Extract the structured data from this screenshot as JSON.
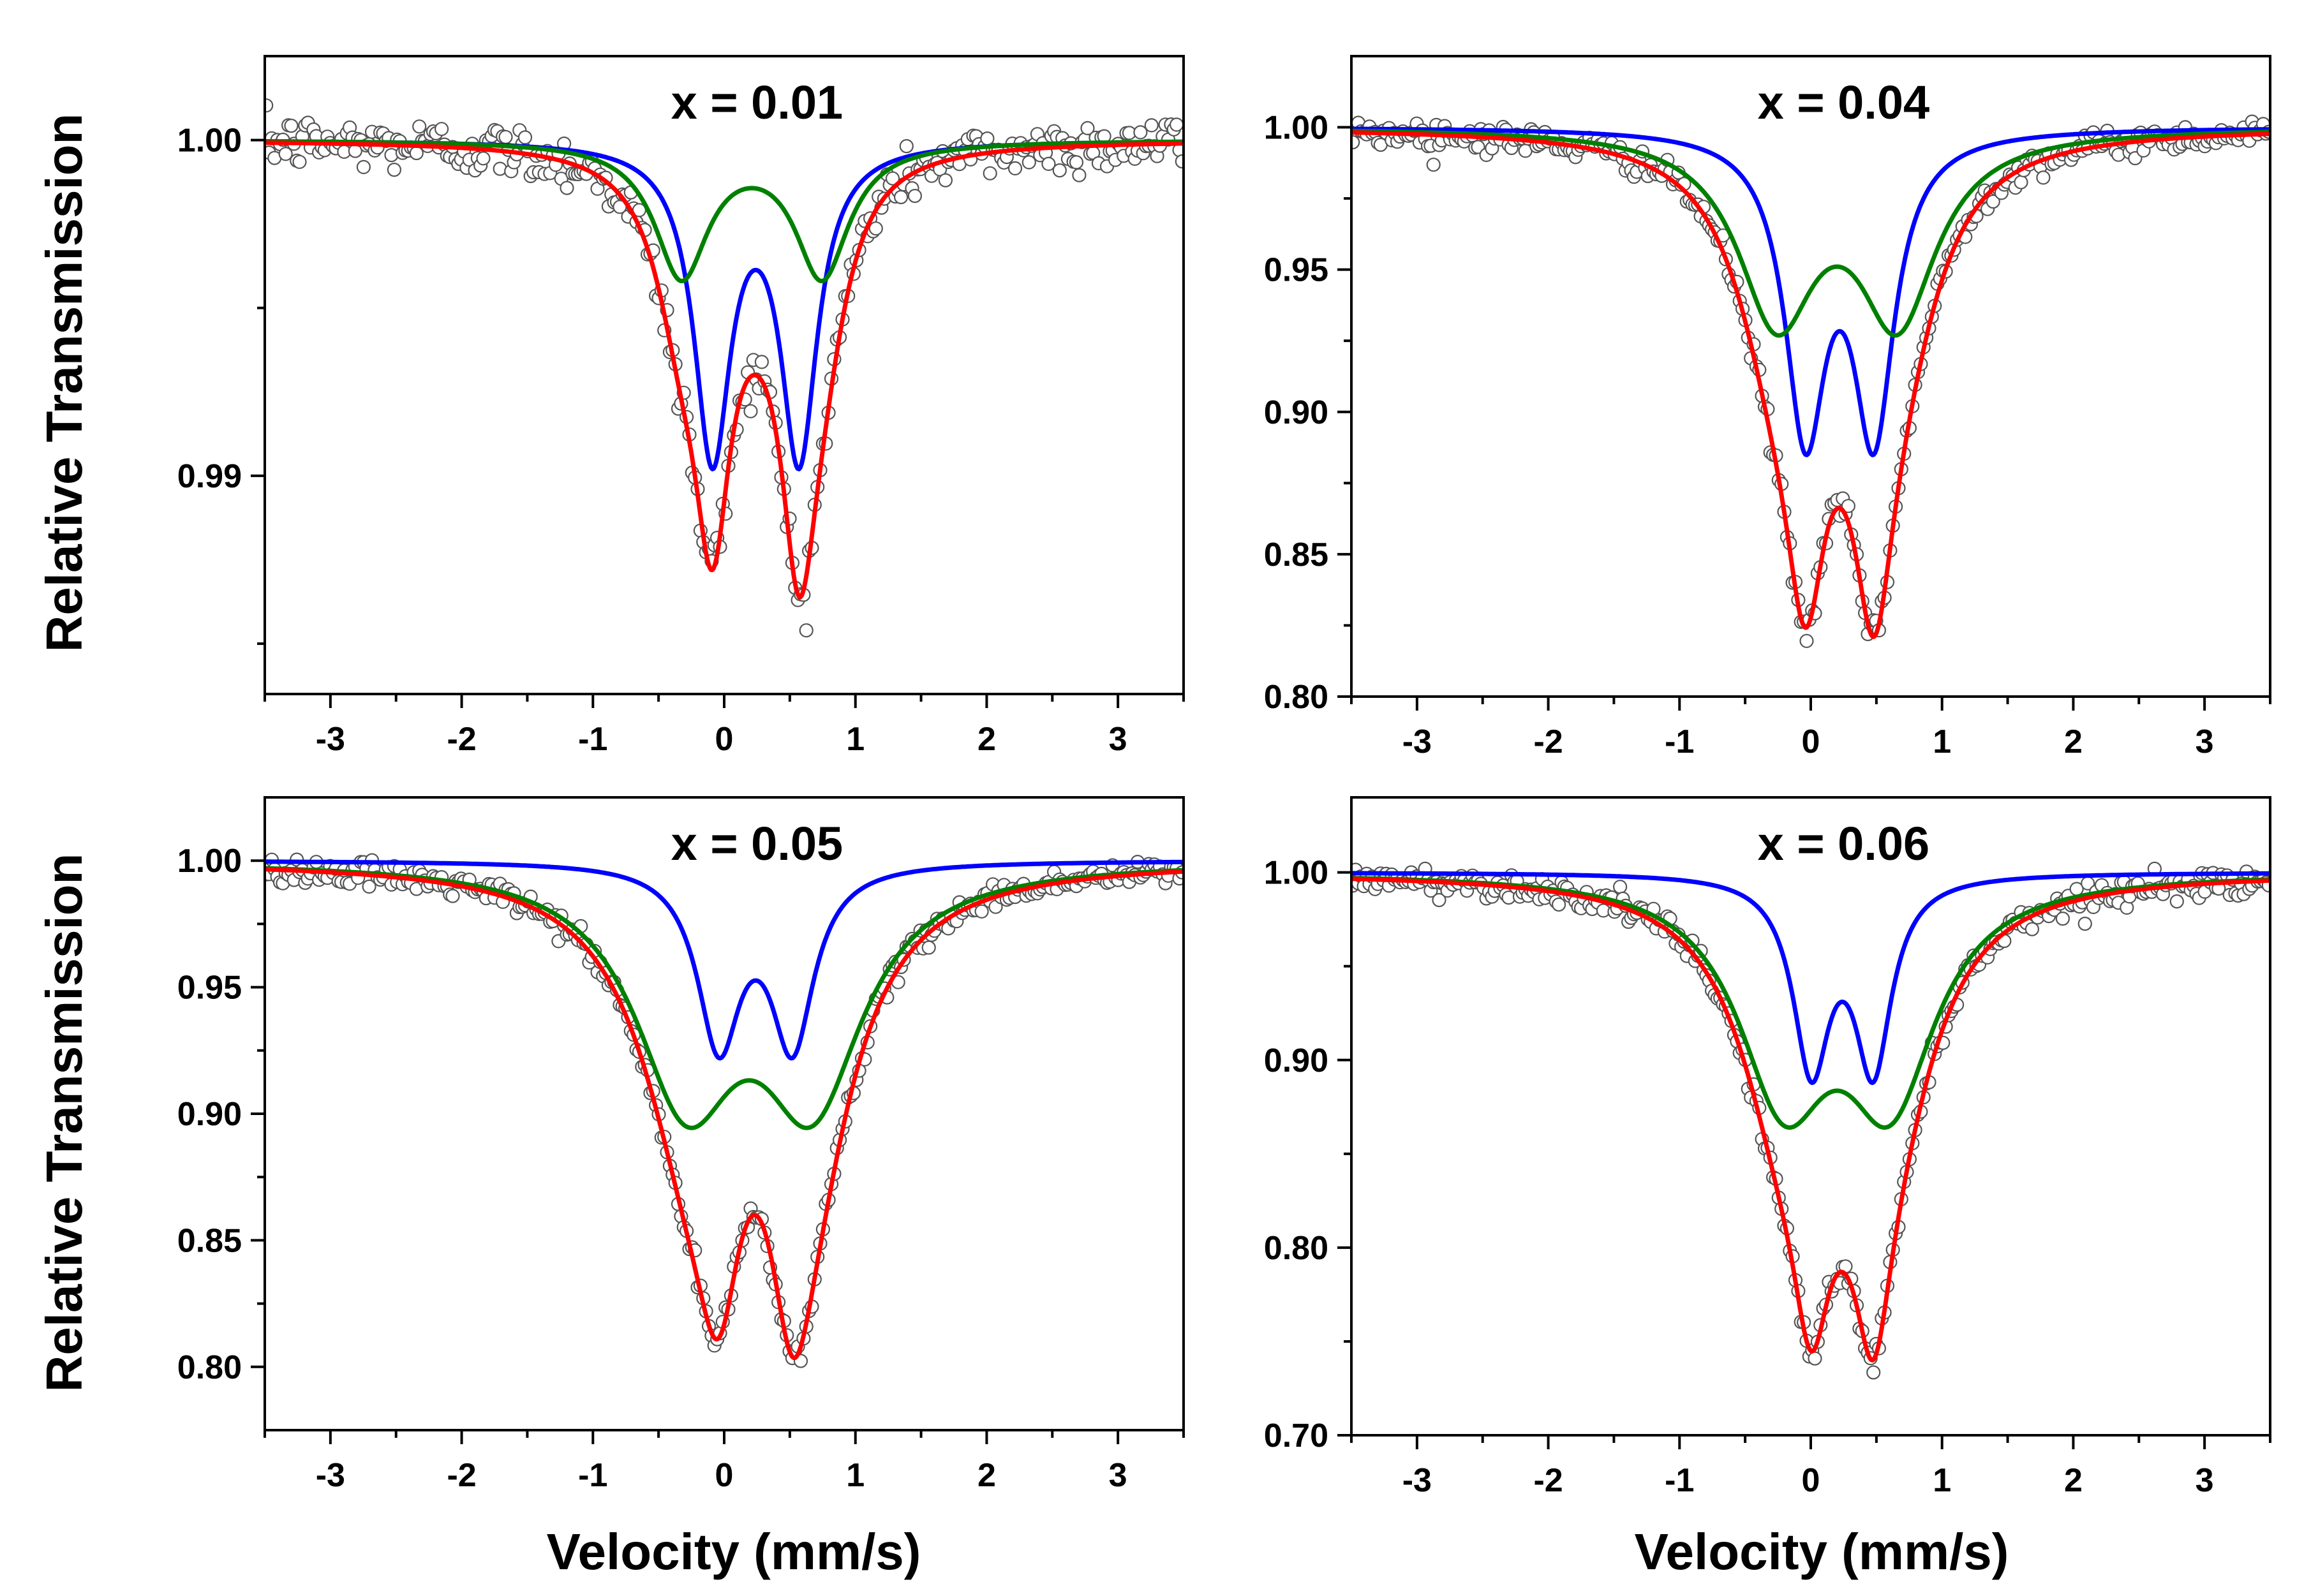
{
  "figure": {
    "xlabel": "Velocity  (mm/s)",
    "ylabel": "Relative Transmission"
  },
  "colors": {
    "total_fit": "#ff0000",
    "component_1": "#0000ff",
    "component_2": "#008000",
    "data_points": "#555555"
  },
  "chart_data": [
    {
      "type": "line",
      "title": "x = 0.01",
      "xlim": [
        -3.5,
        3.5
      ],
      "ylim": [
        0.9835,
        1.0025
      ],
      "x_ticks": [
        -3,
        -2,
        -1,
        0,
        1,
        2,
        3
      ],
      "y_ticks": [
        0.99,
        1.0
      ],
      "y_tick_labels": [
        "0.99",
        "1.00"
      ],
      "y_minor_ticks": [
        0.985,
        0.995
      ],
      "scatter_noise": 0.0004,
      "series": [
        {
          "role": "component_1",
          "baseline": 1.0,
          "center": 0.24,
          "split": 0.66,
          "fwhm": 0.34,
          "depth": 0.0098
        },
        {
          "role": "component_2",
          "baseline": 1.0,
          "center": 0.21,
          "split": 1.07,
          "fwhm": 0.5,
          "depth": 0.0042
        },
        {
          "role": "total_fit",
          "baseline": 1.0,
          "min_left": [
            -0.1,
            0.9872
          ],
          "min_right": [
            0.57,
            0.9864
          ],
          "max_center": [
            0.23,
            0.993
          ]
        }
      ]
    },
    {
      "type": "line",
      "title": "x = 0.04",
      "xlim": [
        -3.5,
        3.5
      ],
      "ylim": [
        0.8,
        1.025
      ],
      "x_ticks": [
        -3,
        -2,
        -1,
        0,
        1,
        2,
        3
      ],
      "y_ticks": [
        0.8,
        0.85,
        0.9,
        0.95,
        1.0
      ],
      "y_tick_labels": [
        "0.80",
        "0.85",
        "0.90",
        "0.95",
        "1.00"
      ],
      "y_minor_ticks": [
        0.825,
        0.875,
        0.925,
        0.975
      ],
      "scatter_noise": 0.0025,
      "series": [
        {
          "role": "component_1",
          "baseline": 1.0,
          "center": 0.22,
          "split": 0.52,
          "fwhm": 0.38,
          "depth": 0.115
        },
        {
          "role": "component_2",
          "baseline": 1.0,
          "center": 0.2,
          "split": 0.92,
          "fwhm": 0.72,
          "depth": 0.073
        },
        {
          "role": "total_fit",
          "baseline": 1.0,
          "min_left": [
            -0.02,
            0.825
          ],
          "min_right": [
            0.48,
            0.821
          ],
          "max_center": [
            0.23,
            0.866
          ]
        }
      ]
    },
    {
      "type": "line",
      "title": "x = 0.05",
      "xlim": [
        -3.5,
        3.5
      ],
      "ylim": [
        0.775,
        1.025
      ],
      "x_ticks": [
        -3,
        -2,
        -1,
        0,
        1,
        2,
        3
      ],
      "y_ticks": [
        0.8,
        0.85,
        0.9,
        0.95,
        1.0
      ],
      "y_tick_labels": [
        "0.80",
        "0.85",
        "0.90",
        "0.95",
        "1.00"
      ],
      "y_minor_ticks": [
        0.825,
        0.875,
        0.925,
        0.975
      ],
      "scatter_noise": 0.0025,
      "series": [
        {
          "role": "component_1",
          "baseline": 1.0,
          "center": 0.24,
          "split": 0.56,
          "fwhm": 0.4,
          "depth": 0.078
        },
        {
          "role": "component_2",
          "baseline": 1.0,
          "center": 0.19,
          "split": 0.96,
          "fwhm": 0.95,
          "depth": 0.105
        },
        {
          "role": "total_fit",
          "baseline": 1.0,
          "min_left": [
            -0.05,
            0.811
          ],
          "min_right": [
            0.55,
            0.804
          ],
          "max_center": [
            0.23,
            0.86
          ]
        }
      ]
    },
    {
      "type": "line",
      "title": "x = 0.06",
      "xlim": [
        -3.5,
        3.5
      ],
      "ylim": [
        0.7,
        1.04
      ],
      "x_ticks": [
        -3,
        -2,
        -1,
        0,
        1,
        2,
        3
      ],
      "y_ticks": [
        0.7,
        0.8,
        0.9,
        1.0
      ],
      "y_tick_labels": [
        "0.70",
        "0.80",
        "0.90",
        "1.00"
      ],
      "y_minor_ticks": [
        0.75,
        0.85,
        0.95
      ],
      "scatter_noise": 0.0035,
      "series": [
        {
          "role": "component_1",
          "baseline": 1.0,
          "center": 0.24,
          "split": 0.47,
          "fwhm": 0.34,
          "depth": 0.112
        },
        {
          "role": "component_2",
          "baseline": 1.0,
          "center": 0.2,
          "split": 0.81,
          "fwhm": 0.85,
          "depth": 0.135
        },
        {
          "role": "total_fit",
          "baseline": 1.0,
          "min_left": [
            0.0,
            0.745
          ],
          "min_right": [
            0.47,
            0.74
          ],
          "max_center": [
            0.24,
            0.787
          ]
        }
      ]
    }
  ]
}
